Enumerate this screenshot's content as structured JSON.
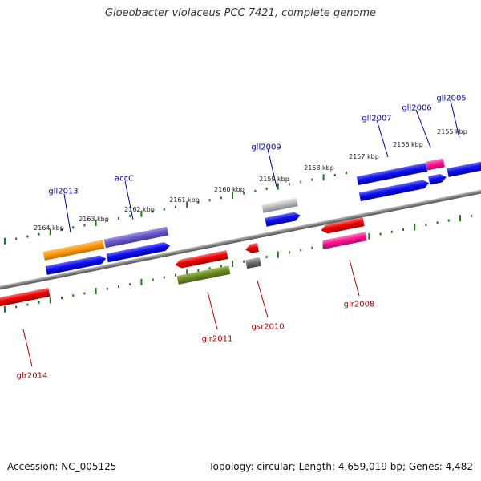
{
  "title": "Gloeobacter violaceus PCC 7421, complete genome",
  "footer": {
    "accession": "Accession: NC_005125",
    "topology": "Topology: circular; Length: 4,659,019 bp; Genes: 4,482"
  },
  "colors": {
    "backbone": "#808080",
    "forward_label": "#0000a0",
    "reverse_label": "#b00000",
    "tick": "#1a7a1a"
  },
  "tick_labels": [
    "2155 kbp",
    "2156 kbp",
    "2157 kbp",
    "2158 kbp",
    "2159 kbp",
    "2160 kbp",
    "2161 kbp",
    "2162 kbp",
    "2163 kbp",
    "2164 kbp"
  ],
  "genes": [
    {
      "label": "gll2005",
      "strand": "forward"
    },
    {
      "label": "gll2006",
      "strand": "forward"
    },
    {
      "label": "gll2007",
      "strand": "forward"
    },
    {
      "label": "gll2009",
      "strand": "forward"
    },
    {
      "label": "accC",
      "strand": "forward"
    },
    {
      "label": "gll2013",
      "strand": "forward"
    },
    {
      "label": "glr2008",
      "strand": "reverse"
    },
    {
      "label": "gsr2010",
      "strand": "reverse"
    },
    {
      "label": "glr2011",
      "strand": "reverse"
    },
    {
      "label": "glr2014",
      "strand": "reverse"
    }
  ]
}
